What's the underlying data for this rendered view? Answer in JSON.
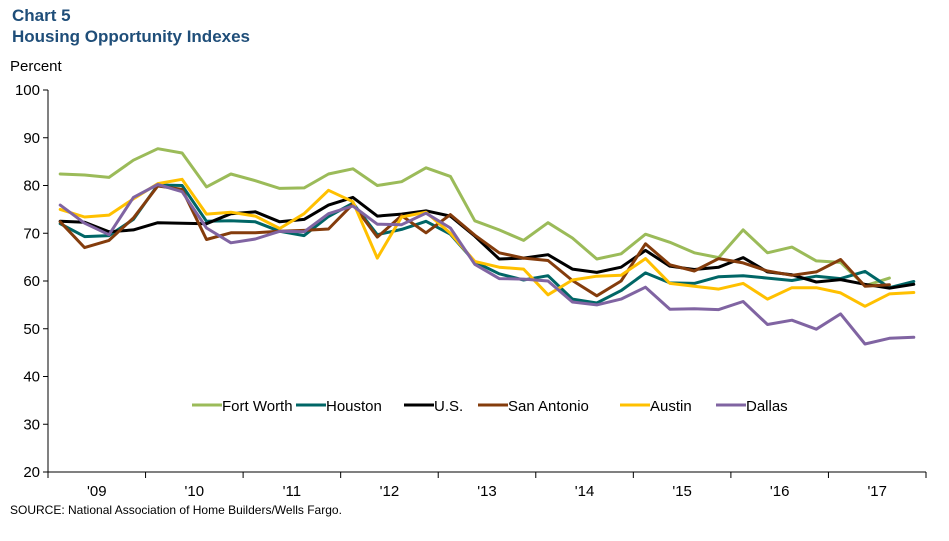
{
  "header": {
    "chart_number": "Chart 5",
    "title": "Housing Opportunity Indexes"
  },
  "footer": {
    "source": "SOURCE: National Association of Home Builders/Wells Fargo."
  },
  "chart_data": {
    "type": "line",
    "title": "Housing Opportunity Indexes",
    "ylabel": "Percent",
    "xlabel": "",
    "ylim": [
      20,
      100
    ],
    "yticks": [
      20,
      30,
      40,
      50,
      60,
      70,
      80,
      90,
      100
    ],
    "xlim": [
      0,
      36
    ],
    "x_tick_labels": [
      "'09",
      "'10",
      "'11",
      "'12",
      "'13",
      "'14",
      "'15",
      "'16",
      "'17"
    ],
    "grid": false,
    "legend": "inside-bottom",
    "series": [
      {
        "name": "Fort Worth",
        "color": "#9bbb59",
        "values": [
          82.4,
          82.2,
          81.7,
          85.3,
          87.7,
          86.8,
          79.7,
          82.4,
          81.0,
          79.4,
          79.5,
          82.4,
          83.5,
          80.0,
          80.8,
          83.7,
          81.9,
          72.6,
          70.7,
          68.5,
          72.2,
          69.0,
          64.6,
          65.7,
          69.8,
          68.1,
          65.9,
          64.9,
          70.7,
          65.9,
          67.1,
          64.2,
          63.9,
          59.0,
          60.6
        ]
      },
      {
        "name": "Houston",
        "color": "#006666",
        "values": [
          72.0,
          69.3,
          69.5,
          72.9,
          80.1,
          80.0,
          72.5,
          72.6,
          72.4,
          70.4,
          69.5,
          73.5,
          76.3,
          69.7,
          70.8,
          72.5,
          69.8,
          64.0,
          61.5,
          60.2,
          61.1,
          56.2,
          55.4,
          58.0,
          61.7,
          59.6,
          59.5,
          60.9,
          61.1,
          60.6,
          60.1,
          61.0,
          60.5,
          62.0,
          58.6,
          59.9
        ]
      },
      {
        "name": "U.S.",
        "color": "#000000",
        "values": [
          72.5,
          72.3,
          70.3,
          70.7,
          72.2,
          72.1,
          72.0,
          74.1,
          74.5,
          72.4,
          72.9,
          75.9,
          77.5,
          73.6,
          74.0,
          74.7,
          73.6,
          69.4,
          64.6,
          64.8,
          65.5,
          62.5,
          61.8,
          62.9,
          66.4,
          63.1,
          62.4,
          62.9,
          64.9,
          61.9,
          61.3,
          59.8,
          60.3,
          59.3,
          58.5,
          59.3
        ]
      },
      {
        "name": "San Antonio",
        "color": "#843c0c",
        "values": [
          72.4,
          67.0,
          68.5,
          73.2,
          79.9,
          79.2,
          68.7,
          70.1,
          70.1,
          70.4,
          70.6,
          70.9,
          76.1,
          69.2,
          73.7,
          70.1,
          73.9,
          69.6,
          65.9,
          64.8,
          64.3,
          60.1,
          56.9,
          60.0,
          67.8,
          63.4,
          62.1,
          64.7,
          63.8,
          62.1,
          61.2,
          61.9,
          64.5,
          58.9,
          59.2
        ]
      },
      {
        "name": "Austin",
        "color": "#ffc000",
        "values": [
          75.0,
          73.4,
          73.8,
          77.2,
          80.4,
          81.3,
          74.0,
          74.4,
          73.6,
          71.0,
          74.1,
          79.0,
          76.6,
          64.8,
          73.4,
          74.4,
          70.0,
          64.1,
          62.9,
          62.5,
          57.1,
          60.2,
          61.0,
          61.2,
          64.7,
          59.5,
          58.9,
          58.3,
          59.5,
          56.2,
          58.6,
          58.6,
          57.5,
          54.7,
          57.3,
          57.6
        ]
      },
      {
        "name": "Dallas",
        "color": "#8064a2",
        "values": [
          75.9,
          72.1,
          69.7,
          77.5,
          80.2,
          78.7,
          71.1,
          68.0,
          68.8,
          70.4,
          70.3,
          74.1,
          75.7,
          71.9,
          71.8,
          74.2,
          71.1,
          63.5,
          60.5,
          60.4,
          60.0,
          55.6,
          55.0,
          56.2,
          58.7,
          54.1,
          54.2,
          54.0,
          55.7,
          50.9,
          51.8,
          49.9,
          53.1,
          46.8,
          48.0,
          48.2
        ]
      }
    ]
  }
}
